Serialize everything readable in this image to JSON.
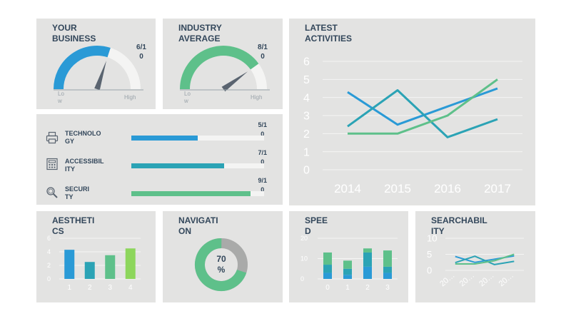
{
  "business": {
    "title": "YOUR\nBUSINESS",
    "score": "6/1\n0",
    "value": 6,
    "max": 10,
    "low": "Lo\nw",
    "high": "High",
    "color": "#2a9ad6"
  },
  "industry": {
    "title": "INDUSTRY\nAVERAGE",
    "score": "8/1\n0",
    "value": 8,
    "max": 10,
    "low": "Lo\nw",
    "high": "High",
    "color": "#5ec08a"
  },
  "metrics": [
    {
      "label": "TECHNOLO\nGY",
      "score": "5/1\n0",
      "value": 5,
      "max": 10,
      "color": "#2a9ad6",
      "icon": "printer-icon"
    },
    {
      "label": "ACCESSIBIL\nITY",
      "score": "7/1\n0",
      "value": 7,
      "max": 10,
      "color": "#2ba3b5",
      "icon": "calculator-icon"
    },
    {
      "label": "SECURI\nTY",
      "score": "9/1\n0",
      "value": 9,
      "max": 10,
      "color": "#5ec08a",
      "icon": "magnifier-icon"
    }
  ],
  "activities": {
    "title": "LATEST\nACTIVITIES"
  },
  "aesthetics": {
    "title": "AESTHETI\nCS"
  },
  "navigation": {
    "title": "NAVIGATI\nON",
    "label": "70\n%",
    "value": 70,
    "color": "#5ec08a",
    "rest_color": "#a9aaa9"
  },
  "speed": {
    "title": "SPEE\nD"
  },
  "searchability": {
    "title": "SEARCHABIL\nITY"
  },
  "chart_data": [
    {
      "id": "latest-activities",
      "type": "line",
      "x": [
        "2014",
        "2015",
        "2016",
        "2017"
      ],
      "ylim": [
        0,
        6
      ],
      "yticks": [
        "0",
        "1",
        "2",
        "3",
        "4",
        "5",
        "6"
      ],
      "grid": true,
      "series": [
        {
          "values": [
            4.3,
            2.5,
            3.5,
            4.5
          ],
          "color": "#2a9ad6"
        },
        {
          "values": [
            2.4,
            4.4,
            1.8,
            2.8
          ],
          "color": "#2ba3b5"
        },
        {
          "values": [
            2.0,
            2.0,
            3.0,
            5.0
          ],
          "color": "#5ec08a"
        }
      ]
    },
    {
      "id": "aesthetics-chart",
      "type": "bar",
      "categories": [
        "1",
        "2",
        "3",
        "4"
      ],
      "values": [
        4.3,
        2.5,
        3.5,
        4.5
      ],
      "colors": [
        "#2a9ad6",
        "#2ba3b5",
        "#5ec08a",
        "#8dd65c"
      ],
      "ylim": [
        0,
        6
      ],
      "yticks": [
        "0",
        "2",
        "4",
        "6"
      ],
      "grid": true
    },
    {
      "id": "speed-chart",
      "type": "bar",
      "stacked": true,
      "categories": [
        "0",
        "1",
        "2",
        "3"
      ],
      "series": [
        {
          "values": [
            3,
            2,
            6,
            3
          ],
          "color": "#2a9ad6"
        },
        {
          "values": [
            4,
            3,
            7,
            3
          ],
          "color": "#2ba3b5"
        },
        {
          "values": [
            6,
            4,
            2,
            8
          ],
          "color": "#5ec08a"
        }
      ],
      "ylim": [
        0,
        20
      ],
      "yticks": [
        "0",
        "10",
        "20"
      ],
      "grid": true
    },
    {
      "id": "searchability-chart",
      "type": "line",
      "x": [
        "20…",
        "20…",
        "20…",
        "20…"
      ],
      "ylim": [
        0,
        10
      ],
      "yticks": [
        "0",
        "5",
        "10"
      ],
      "grid": true,
      "series": [
        {
          "values": [
            4.3,
            2.5,
            3.5,
            4.5
          ],
          "color": "#2a9ad6"
        },
        {
          "values": [
            2.4,
            4.4,
            1.8,
            2.8
          ],
          "color": "#2ba3b5"
        },
        {
          "values": [
            2.0,
            2.0,
            3.0,
            5.0
          ],
          "color": "#5ec08a"
        }
      ]
    }
  ]
}
